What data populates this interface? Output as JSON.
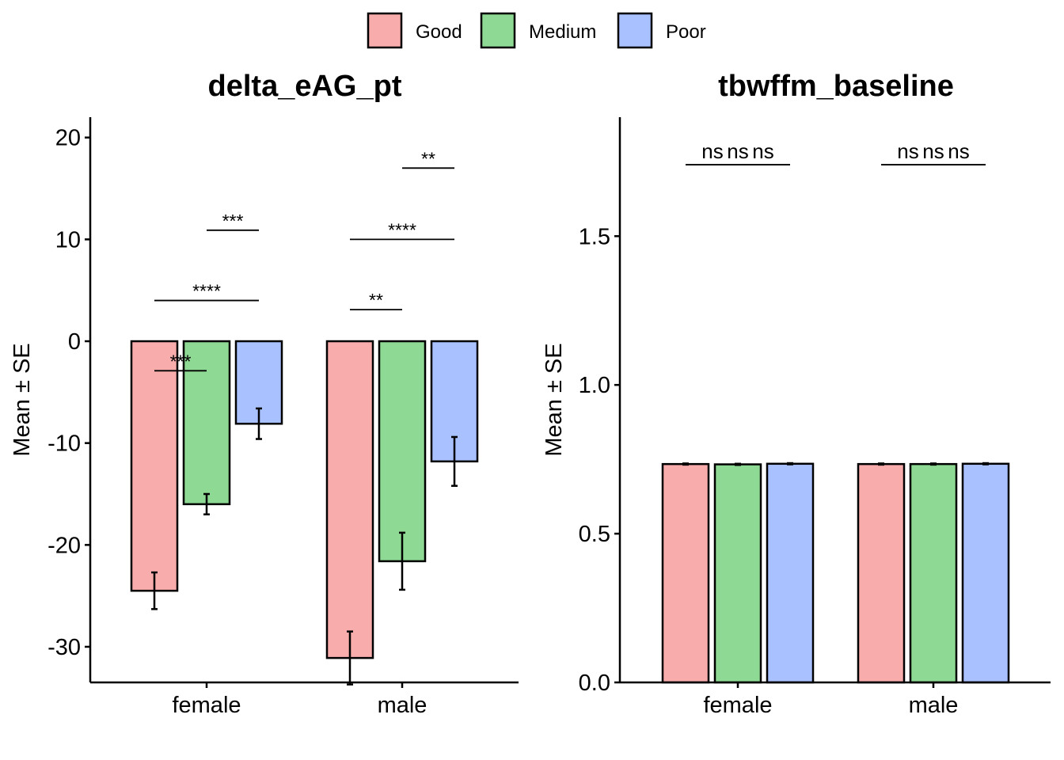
{
  "legend": {
    "items": [
      {
        "label": "Good",
        "color": "#F8ACAC"
      },
      {
        "label": "Medium",
        "color": "#8ED993"
      },
      {
        "label": "Poor",
        "color": "#A9C1FF"
      }
    ]
  },
  "chart_data": [
    {
      "type": "bar",
      "title": "delta_eAG_pt",
      "xlabel": "",
      "ylabel": "Mean ± SE",
      "categories": [
        "female",
        "male"
      ],
      "ylim": [
        -33.5,
        22
      ],
      "yticks": [
        20,
        10,
        0,
        -10,
        -20,
        -30
      ],
      "grid": false,
      "series": [
        {
          "name": "Good",
          "color": "#F8ACAC",
          "values": [
            -24.5,
            -31.1
          ],
          "se": [
            1.8,
            2.6
          ]
        },
        {
          "name": "Medium",
          "color": "#8ED993",
          "values": [
            -16.0,
            -21.6
          ],
          "se": [
            1.0,
            2.8
          ]
        },
        {
          "name": "Poor",
          "color": "#A9C1FF",
          "values": [
            -8.1,
            -11.8
          ],
          "se": [
            1.5,
            2.4
          ]
        }
      ],
      "significance": [
        {
          "category": "female",
          "from": "Good",
          "to": "Medium",
          "y": -2.9,
          "label": "***"
        },
        {
          "category": "female",
          "from": "Good",
          "to": "Poor",
          "y": 4.0,
          "label": "****"
        },
        {
          "category": "female",
          "from": "Medium",
          "to": "Poor",
          "y": 10.9,
          "label": "***"
        },
        {
          "category": "male",
          "from": "Good",
          "to": "Medium",
          "y": 3.1,
          "label": "**"
        },
        {
          "category": "male",
          "from": "Good",
          "to": "Poor",
          "y": 10.0,
          "label": "****"
        },
        {
          "category": "male",
          "from": "Medium",
          "to": "Poor",
          "y": 17.0,
          "label": "**"
        }
      ]
    },
    {
      "type": "bar",
      "title": "tbwffm_baseline",
      "xlabel": "",
      "ylabel": "Mean ± SE",
      "categories": [
        "female",
        "male"
      ],
      "ylim": [
        0,
        1.9
      ],
      "yticks": [
        0.0,
        0.5,
        1.0,
        1.5
      ],
      "tick_labels": [
        "0.0",
        "0.5",
        "1.0",
        "1.5"
      ],
      "grid": false,
      "series": [
        {
          "name": "Good",
          "color": "#F8ACAC",
          "values": [
            0.734,
            0.734
          ],
          "se": [
            0.002,
            0.002
          ]
        },
        {
          "name": "Medium",
          "color": "#8ED993",
          "values": [
            0.733,
            0.734
          ],
          "se": [
            0.002,
            0.002
          ]
        },
        {
          "name": "Poor",
          "color": "#A9C1FF",
          "values": [
            0.735,
            0.735
          ],
          "se": [
            0.002,
            0.002
          ]
        }
      ],
      "significance": [
        {
          "category": "female",
          "from": "Good",
          "to": "Medium",
          "y": 1.74,
          "label": "ns"
        },
        {
          "category": "female",
          "from": "Good",
          "to": "Poor",
          "y": 1.74,
          "label": "ns"
        },
        {
          "category": "female",
          "from": "Medium",
          "to": "Poor",
          "y": 1.74,
          "label": "ns"
        },
        {
          "category": "male",
          "from": "Good",
          "to": "Medium",
          "y": 1.74,
          "label": "ns"
        },
        {
          "category": "male",
          "from": "Good",
          "to": "Poor",
          "y": 1.74,
          "label": "ns"
        },
        {
          "category": "male",
          "from": "Medium",
          "to": "Poor",
          "y": 1.74,
          "label": "ns"
        }
      ]
    }
  ]
}
